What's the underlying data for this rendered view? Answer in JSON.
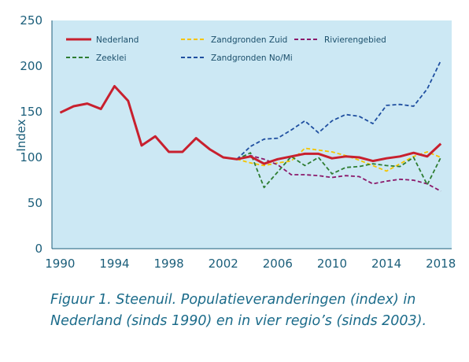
{
  "chart_data": {
    "type": "line",
    "title": "",
    "xlabel": "",
    "ylabel": "Index",
    "xlim": [
      1989.4,
      2018.8
    ],
    "ylim": [
      0,
      250
    ],
    "xticks": [
      1990,
      1994,
      1998,
      2002,
      2006,
      2010,
      2014,
      2018
    ],
    "yticks": [
      0,
      50,
      100,
      150,
      200,
      250
    ],
    "grid": false,
    "legend_position": "top",
    "background": "#cce8f4",
    "series": [
      {
        "name": "Nederland",
        "color": "#c8202e",
        "dash": "solid",
        "width": 3,
        "x": [
          1990,
          1991,
          1992,
          1993,
          1994,
          1995,
          1996,
          1997,
          1998,
          1999,
          2000,
          2001,
          2002,
          2003,
          2004,
          2005,
          2006,
          2007,
          2008,
          2009,
          2010,
          2011,
          2012,
          2013,
          2014,
          2015,
          2016,
          2017,
          2018
        ],
        "y": [
          149,
          156,
          159,
          153,
          178,
          162,
          113,
          123,
          106,
          106,
          121,
          109,
          100,
          98,
          101,
          93,
          98,
          101,
          104,
          104,
          99,
          101,
          100,
          96,
          99,
          101,
          105,
          101,
          115
        ]
      },
      {
        "name": "Zandgronden Zuid",
        "color": "#f5c400",
        "dash": "dashed",
        "width": 1.8,
        "x": [
          2003,
          2004,
          2005,
          2006,
          2007,
          2008,
          2009,
          2010,
          2011,
          2012,
          2013,
          2014,
          2015,
          2016,
          2017,
          2018
        ],
        "y": [
          98,
          94,
          91,
          94,
          96,
          110,
          108,
          106,
          102,
          97,
          91,
          85,
          93,
          101,
          106,
          100
        ]
      },
      {
        "name": "Rivierengebied",
        "color": "#8b1a6b",
        "dash": "dashed",
        "width": 1.8,
        "x": [
          2003,
          2004,
          2005,
          2006,
          2007,
          2008,
          2009,
          2010,
          2011,
          2012,
          2013,
          2014,
          2015,
          2016,
          2017,
          2018
        ],
        "y": [
          98,
          102,
          98,
          92,
          81,
          81,
          80,
          78,
          80,
          79,
          71,
          74,
          76,
          75,
          71,
          63
        ]
      },
      {
        "name": "Zeeklei",
        "color": "#2e7d32",
        "dash": "dashed",
        "width": 1.8,
        "x": [
          2003,
          2004,
          2005,
          2006,
          2007,
          2008,
          2009,
          2010,
          2011,
          2012,
          2013,
          2014,
          2015,
          2016,
          2017,
          2018
        ],
        "y": [
          98,
          105,
          67,
          84,
          101,
          91,
          100,
          82,
          89,
          90,
          93,
          91,
          90,
          100,
          70,
          100
        ]
      },
      {
        "name": "Zandgronden No/Mi",
        "color": "#1f4fa0",
        "dash": "dashed",
        "width": 1.8,
        "x": [
          2003,
          2004,
          2005,
          2006,
          2007,
          2008,
          2009,
          2010,
          2011,
          2012,
          2013,
          2014,
          2015,
          2016,
          2017,
          2018
        ],
        "y": [
          98,
          112,
          120,
          121,
          130,
          140,
          127,
          140,
          147,
          145,
          137,
          157,
          158,
          156,
          175,
          206
        ]
      }
    ]
  },
  "caption": {
    "line1": "Figuur 1. Steenuil. Populatieveranderingen (index) in",
    "line2": "Nederland (sinds 1990) en in vier regio’s (sinds 2003)."
  }
}
